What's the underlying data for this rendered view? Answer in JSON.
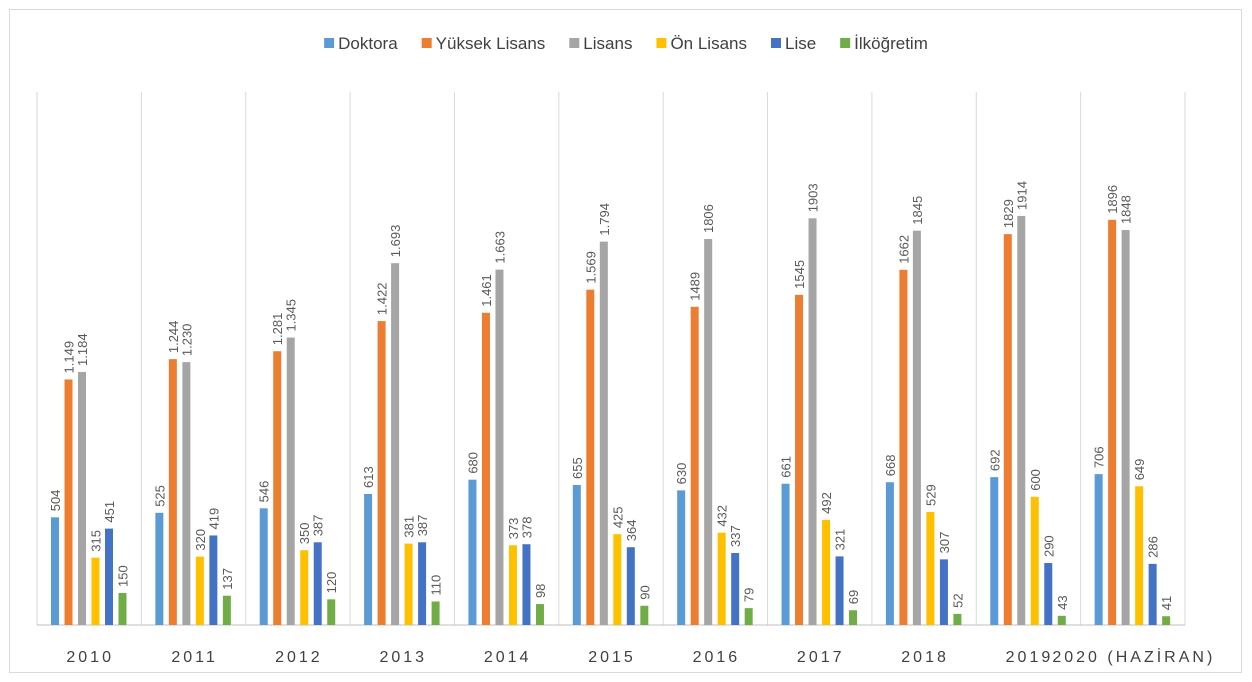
{
  "chart_data": {
    "type": "bar",
    "categories": [
      "2010",
      "2011",
      "2012",
      "2013",
      "2014",
      "2015",
      "2016",
      "2017",
      "2018",
      "2019",
      "2020 (HAZİRAN)"
    ],
    "series": [
      {
        "name": "Doktora",
        "color": "#5b9bd5",
        "values": [
          504,
          525,
          546,
          613,
          680,
          655,
          630,
          661,
          668,
          692,
          706
        ]
      },
      {
        "name": "Yüksek Lisans",
        "color": "#ed7d31",
        "values": [
          1149,
          1244,
          1281,
          1422,
          1461,
          1569,
          1489,
          1545,
          1662,
          1829,
          1896
        ],
        "value_labels": [
          "1.149",
          "1.244",
          "1.281",
          "1.422",
          "1.461",
          "1.569",
          "1489",
          "1545",
          "1662",
          "1829",
          "1896"
        ]
      },
      {
        "name": "Lisans",
        "color": "#a5a5a5",
        "values": [
          1184,
          1230,
          1345,
          1693,
          1663,
          1794,
          1806,
          1903,
          1845,
          1914,
          1848
        ],
        "value_labels": [
          "1.184",
          "1.230",
          "1.345",
          "1.693",
          "1.663",
          "1.794",
          "1806",
          "1903",
          "1845",
          "1914",
          "1848"
        ]
      },
      {
        "name": "Ön Lisans",
        "color": "#ffc000",
        "values": [
          315,
          320,
          350,
          381,
          373,
          425,
          432,
          492,
          529,
          600,
          649
        ]
      },
      {
        "name": "Lise",
        "color": "#4472c4",
        "values": [
          451,
          419,
          387,
          387,
          378,
          364,
          337,
          321,
          307,
          290,
          286
        ]
      },
      {
        "name": "İlköğretim",
        "color": "#70ad47",
        "values": [
          150,
          137,
          120,
          110,
          98,
          90,
          79,
          69,
          52,
          43,
          41
        ]
      }
    ]
  }
}
